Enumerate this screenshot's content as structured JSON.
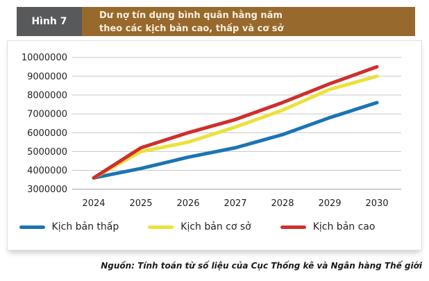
{
  "page": {
    "background": "#FFFFFF"
  },
  "header": {
    "figure_label": "Hình 7",
    "title_line1": "Dư nợ tín dụng bình quân hằng năm",
    "title_line2": "theo các kịch bản cao, thấp và cơ sở",
    "label_bg": "#58595B",
    "title_bg": "#97692C",
    "title_color": "#F7EFDE"
  },
  "chart_data": {
    "type": "line",
    "title": "Dư nợ tín dụng bình quân hằng năm theo các kịch bản cao, thấp và cơ sở",
    "x": [
      2024,
      2025,
      2026,
      2027,
      2028,
      2029,
      2030
    ],
    "series": [
      {
        "name": "Kịch bản thấp",
        "color": "#1B74B4",
        "values": [
          3600000,
          4100000,
          4700000,
          5200000,
          5900000,
          6800000,
          7600000
        ]
      },
      {
        "name": "Kịch bản cơ sở",
        "color": "#EAE23C",
        "values": [
          3600000,
          5000000,
          5500000,
          6300000,
          7200000,
          8300000,
          9000000
        ]
      },
      {
        "name": "Kịch bản cao",
        "color": "#CE2F2C",
        "values": [
          3600000,
          5200000,
          6000000,
          6700000,
          7600000,
          8600000,
          9500000
        ]
      }
    ],
    "ylim": [
      3000000,
      10000000
    ],
    "ytick_step": 1000000,
    "ytick_labels": [
      "3000000",
      "4000000",
      "5000000",
      "6000000",
      "7000000",
      "8000000",
      "9000000",
      "10000000"
    ],
    "xtick_labels": [
      "2024",
      "2025",
      "2026",
      "2027",
      "2028",
      "2029",
      "2030"
    ],
    "xlabel": "",
    "ylabel": "",
    "grid": true,
    "legend_position": "bottom",
    "gridline_color": "#C6C6C6",
    "axis_line_color": "#9E9E9E"
  },
  "footer": {
    "source": "Nguồn: Tính toán từ số liệu của Cục Thống kê và Ngân hàng Thế giới"
  }
}
